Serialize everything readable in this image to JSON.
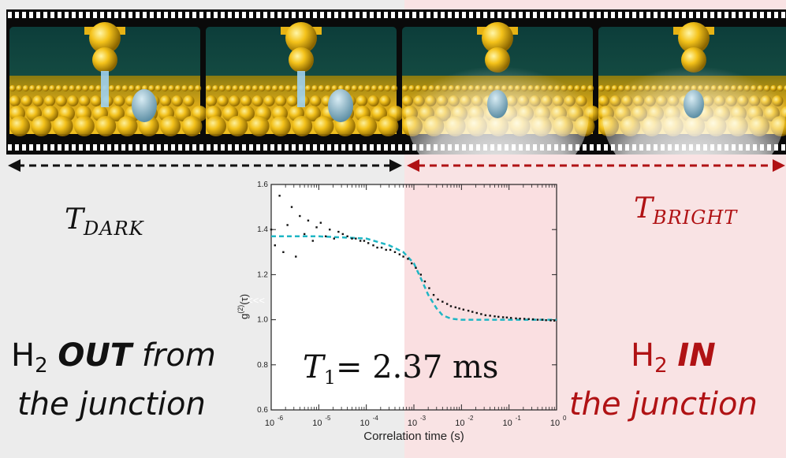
{
  "labels": {
    "t_dark_main": "T",
    "t_dark_sub": "DARK",
    "t_bright_main": "T",
    "t_bright_sub": "BRIGHT",
    "out_h": "H",
    "out_sub": "2",
    "out_word": "OUT",
    "out_rest": " from",
    "out_line2": "the junction",
    "in_h": "H",
    "in_sub": "2",
    "in_word": "IN",
    "in_line2": "the junction",
    "t1_main": "T",
    "t1_sub": "1",
    "t1_value": "= 2.37 ms",
    "glitch": "<<<"
  },
  "colors": {
    "dark_text": "#111111",
    "bright_text": "#b01214",
    "left_bg": "#ececec",
    "right_bg": "#f9e3e4",
    "fit_line": "#1fb6c4",
    "data_points": "#111111"
  },
  "film_strip": {
    "frames": [
      {
        "state": "dark"
      },
      {
        "state": "dark"
      },
      {
        "state": "bright"
      },
      {
        "state": "bright"
      }
    ],
    "icons": [
      "stm-tip-icon",
      "h2-molecule-icon",
      "tunneling-current-icon",
      "light-emission-icon",
      "gold-surface-icon"
    ]
  },
  "chart_data": {
    "type": "scatter",
    "xscale": "log",
    "xlim": [
      1e-06,
      1
    ],
    "ylim": [
      0.6,
      1.6
    ],
    "xlabel": "Correlation time (s)",
    "ylabel": "g(2)(τ)",
    "ylabel_main": "g",
    "ylabel_sup": "(2)",
    "ylabel_arg": "(τ)",
    "xticks": [
      1e-06,
      1e-05,
      0.0001,
      0.001,
      0.01,
      0.1,
      1
    ],
    "xtick_base": "10",
    "xtick_exponents": [
      "-6",
      "-5",
      "-4",
      "-3",
      "-2",
      "-1",
      "0"
    ],
    "yticks": [
      0.6,
      0.8,
      1.0,
      1.2,
      1.4,
      1.6
    ],
    "ytick_labels": [
      "0.6",
      "0.8",
      "1.0",
      "1.2",
      "1.4",
      "1.6"
    ],
    "grid": false,
    "series": [
      {
        "style": "scatter",
        "x": [
          1e-06,
          1.2e-06,
          1.5e-06,
          1.8e-06,
          2.2e-06,
          2.7e-06,
          3.3e-06,
          4e-06,
          5e-06,
          6e-06,
          7.5e-06,
          9e-06,
          1.1e-05,
          1.4e-05,
          1.7e-05,
          2.1e-05,
          2.6e-05,
          3.2e-05,
          4e-05,
          5e-05,
          6e-05,
          7.5e-05,
          9e-05,
          0.00011,
          0.00014,
          0.00017,
          0.00021,
          0.00026,
          0.00032,
          0.0004,
          0.0005,
          0.0006,
          0.00075,
          0.0009,
          0.0011,
          0.0014,
          0.0017,
          0.0021,
          0.0026,
          0.0032,
          0.004,
          0.005,
          0.006,
          0.0075,
          0.009,
          0.011,
          0.014,
          0.017,
          0.021,
          0.026,
          0.032,
          0.04,
          0.05,
          0.06,
          0.075,
          0.09,
          0.11,
          0.14,
          0.17,
          0.21,
          0.26,
          0.32,
          0.4,
          0.5,
          0.6,
          0.75,
          0.9
        ],
        "y": [
          1.4,
          1.33,
          1.55,
          1.3,
          1.42,
          1.5,
          1.28,
          1.46,
          1.38,
          1.44,
          1.35,
          1.41,
          1.43,
          1.37,
          1.4,
          1.36,
          1.39,
          1.38,
          1.37,
          1.36,
          1.36,
          1.35,
          1.35,
          1.34,
          1.33,
          1.32,
          1.32,
          1.31,
          1.31,
          1.3,
          1.29,
          1.28,
          1.27,
          1.25,
          1.23,
          1.2,
          1.17,
          1.14,
          1.11,
          1.09,
          1.08,
          1.07,
          1.06,
          1.055,
          1.05,
          1.045,
          1.04,
          1.035,
          1.03,
          1.025,
          1.02,
          1.018,
          1.015,
          1.013,
          1.011,
          1.01,
          1.008,
          1.006,
          1.005,
          1.004,
          1.003,
          1.002,
          1.0,
          1.0,
          0.998,
          0.997,
          0.996
        ]
      },
      {
        "style": "dashed-line",
        "x": [
          1e-06,
          1e-05,
          0.0001,
          0.0003,
          0.0006,
          0.001,
          0.0015,
          0.002,
          0.003,
          0.004,
          0.006,
          0.01,
          0.02,
          0.05,
          0.1,
          0.3,
          1
        ],
        "y": [
          1.37,
          1.37,
          1.36,
          1.33,
          1.3,
          1.25,
          1.17,
          1.11,
          1.05,
          1.02,
          1.005,
          1.0,
          1.0,
          1.0,
          1.0,
          1.0,
          1.0
        ]
      }
    ]
  }
}
